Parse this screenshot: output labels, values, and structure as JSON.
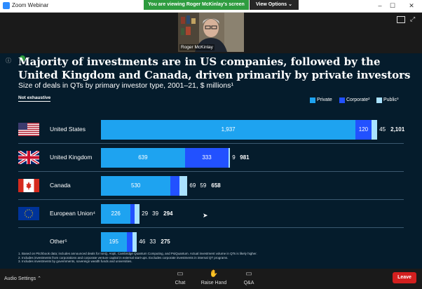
{
  "window": {
    "title": "Zoom Webinar",
    "sharing_banner": "You are viewing Roger McKinlay's screen",
    "view_options": "View Options"
  },
  "speaker": {
    "name": "Roger McKinlay"
  },
  "slide": {
    "title": "Majority of investments are in US companies, followed by the United Kingdom and Canada, driven primarily by private investors",
    "subtitle": "Size of deals in QTs by primary investor type, 2001–21, $ millions¹",
    "not_exhaustive": "Not exhaustive",
    "legend": [
      {
        "label": "Private",
        "color": "#1ea3f0"
      },
      {
        "label": "Corporate²",
        "color": "#2251ff"
      },
      {
        "label": "Public³",
        "color": "#a9e2ff"
      }
    ],
    "rows": [
      {
        "country": "United States"
      },
      {
        "country": "United Kingdom"
      },
      {
        "country": "Canada"
      },
      {
        "country": "European Union⁴"
      },
      {
        "country": "Other⁵"
      }
    ],
    "footnotes": [
      "1. Based on Pitchbook data; includes announced deals for IonQ, ArqE, Cambridge Quantum Computing, and PsiQuantum. Actual investment volume in QTs is likely higher.",
      "2. Includes investments from corporations and corporate venture capital in external start-ups. Excludes corporate investments in internal QT programs.",
      "3. Includes investments by governments, sovereign wealth funds and universities."
    ]
  },
  "chart_data": {
    "type": "bar",
    "stacked": true,
    "orientation": "horizontal",
    "categories": [
      "United States",
      "United Kingdom",
      "Canada",
      "European Union⁴",
      "Other⁵"
    ],
    "series": [
      {
        "name": "Private",
        "values": [
          1937,
          639,
          530,
          226,
          195
        ]
      },
      {
        "name": "Corporate²",
        "values": [
          120,
          333,
          69,
          29,
          46
        ]
      },
      {
        "name": "Public³",
        "values": [
          45,
          9,
          59,
          39,
          33
        ]
      }
    ],
    "totals": [
      "2,101",
      "981",
      "658",
      "294",
      "275"
    ]
  },
  "toolbar": {
    "audio_settings": "Audio Settings",
    "chat": "Chat",
    "raise_hand": "Raise Hand",
    "qa": "Q&A",
    "leave": "Leave"
  }
}
